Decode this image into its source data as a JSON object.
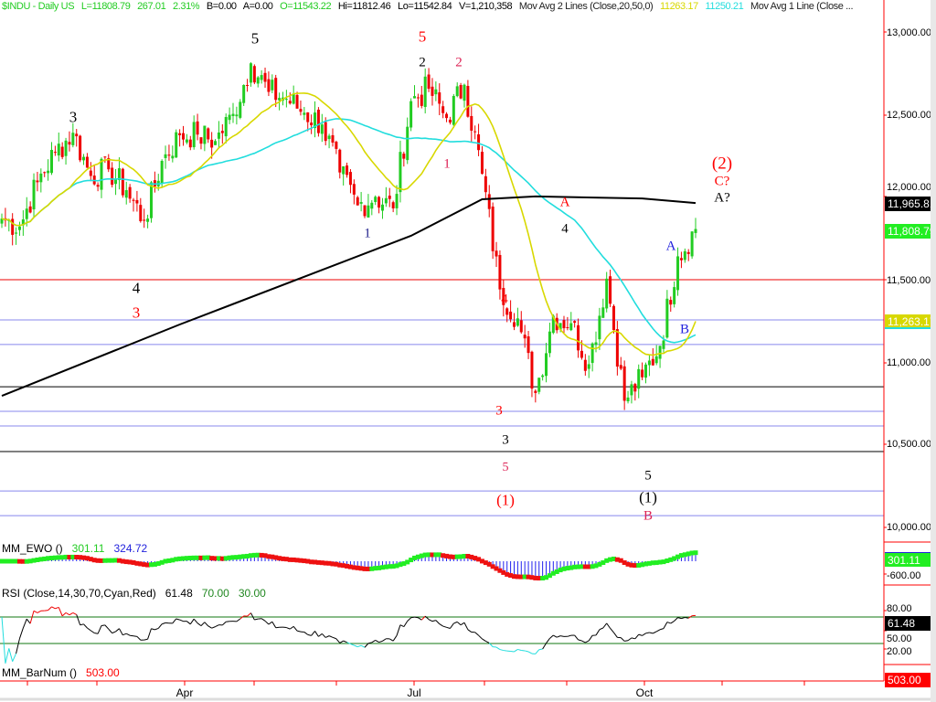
{
  "header": {
    "symbol": "$INDU - Daily  US",
    "last": "L=11808.79",
    "change": "267.01",
    "change_pct": "2.31%",
    "bid": "B=0.00",
    "ask": "A=0.00",
    "open": "O=11543.22",
    "high": "Hi=11812.46",
    "low": "Lo=11542.84",
    "volume": "V=1,210,358",
    "ma2_label": "Mov Avg 2 Lines (Close,20,50,0)",
    "ma20_value": "11263.17",
    "ma50_value": "11250.21",
    "ma1_label": "Mov Avg 1 Line (Close ..."
  },
  "colors": {
    "up": "#22cc22",
    "down": "#ee0000",
    "ma20": "#d8d800",
    "ma50": "#22dddd",
    "ma200": "#000000",
    "axis": "#ff0000",
    "fib": "#8888ee"
  },
  "axis": {
    "price_ticks": [
      "13,000.00",
      "12,500.00",
      "12,000.00",
      "11,500.00",
      "11,000.00",
      "10,500.00",
      "10,000.00"
    ],
    "ewo_tick": "-600.00",
    "rsi_ticks": [
      "80.00",
      "50.00",
      "20.00"
    ],
    "x_ticks": [
      "Apr",
      "Jul",
      "Oct"
    ]
  },
  "value_boxes": {
    "ma200": "11,965.81",
    "last": "11,808.79",
    "ma20": "11,263.17",
    "ewo": "301.11",
    "rsi": "61.48",
    "barnum": "503.00"
  },
  "panels": {
    "ewo": {
      "label": "MM_EWO ()",
      "v1": "301.11",
      "v2": "324.72"
    },
    "rsi": {
      "label": "RSI (Close,14,30,70,Cyan,Red)",
      "value": "61.48",
      "upper": "70.00",
      "lower": "30.00"
    },
    "barnum": {
      "label": "MM_BarNum ()",
      "value": "503.00"
    }
  },
  "wave_labels": [
    "5",
    "5",
    "2",
    "2",
    "1",
    "1",
    "3",
    "4",
    "3",
    "A",
    "4",
    "4",
    "3",
    "3",
    "5",
    "(1)",
    "5",
    "(1)",
    "B",
    "A",
    "B",
    "(2)",
    "C?",
    "A?"
  ],
  "chart_data": {
    "type": "candlestick",
    "title": "$INDU - Daily",
    "ylim": [
      9950,
      13100
    ],
    "grid": false,
    "horizontal_levels": {
      "red": [
        11503
      ],
      "blue": [
        11260,
        11111,
        10707,
        10619,
        10226,
        10077
      ],
      "black": [
        10856,
        10464
      ]
    },
    "weekly_closes": [
      [
        "Jan 21",
        11872
      ],
      [
        "Jan 28",
        11824
      ],
      [
        "Feb 4",
        12092
      ],
      [
        "Feb 11",
        12273
      ],
      [
        "Feb 18",
        12391
      ],
      [
        "Feb 25",
        12130
      ],
      [
        "Mar 4",
        12170
      ],
      [
        "Mar 11",
        12044
      ],
      [
        "Mar 18",
        11859
      ],
      [
        "Mar 25",
        12221
      ],
      [
        "Apr 1",
        12376
      ],
      [
        "Apr 8",
        12380
      ],
      [
        "Apr 15",
        12341
      ],
      [
        "Apr 21",
        12505
      ],
      [
        "Apr 29",
        12811
      ],
      [
        "May 6",
        12638
      ],
      [
        "May 13",
        12596
      ],
      [
        "May 20",
        12512
      ],
      [
        "May 27",
        12441
      ],
      [
        "Jun 3",
        12151
      ],
      [
        "Jun 10",
        11952
      ],
      [
        "Jun 17",
        12004
      ],
      [
        "Jun 24",
        11934
      ],
      [
        "Jul 1",
        12582
      ],
      [
        "Jul 8",
        12657
      ],
      [
        "Jul 15",
        12480
      ],
      [
        "Jul 22",
        12681
      ],
      [
        "Jul 29",
        12143
      ],
      [
        "Aug 5",
        11444
      ],
      [
        "Aug 12",
        11269
      ],
      [
        "Aug 19",
        10818
      ],
      [
        "Aug 26",
        11285
      ],
      [
        "Sep 2",
        11240
      ],
      [
        "Sep 9",
        10992
      ],
      [
        "Sep 16",
        11509
      ],
      [
        "Sep 23",
        10771
      ],
      [
        "Sep 30",
        10913
      ],
      [
        "Oct 7",
        11103
      ],
      [
        "Oct 14",
        11644
      ],
      [
        "Oct 21",
        11809
      ]
    ],
    "ma200": [
      [
        "Jan 21",
        10801
      ],
      [
        "Apr 1",
        11232
      ],
      [
        "Jul 1",
        11768
      ],
      [
        "Jul 29",
        11989
      ],
      [
        "Aug 19",
        12006
      ],
      [
        "Sep 30",
        11994
      ],
      [
        "Oct 21",
        11966
      ]
    ]
  }
}
